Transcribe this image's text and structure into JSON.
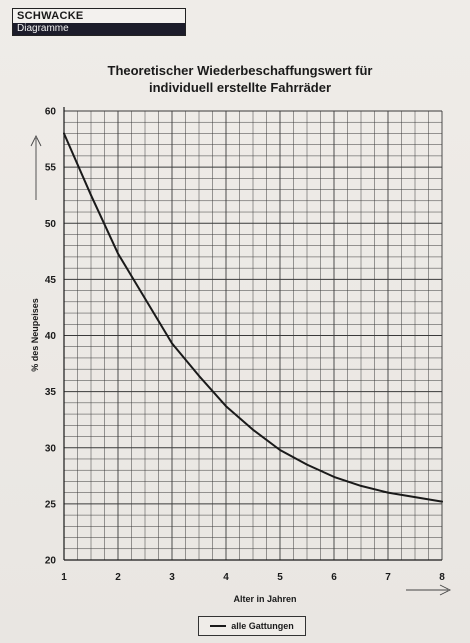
{
  "header": {
    "brand": "SCHWACKE",
    "section": "Diagramme"
  },
  "chart_data": {
    "type": "line",
    "title_line1": "Theoretischer Wiederbeschaffungswert für",
    "title_line2": "individuell erstellte Fahrräder",
    "xlabel": "Alter in Jahren",
    "ylabel": "% des Neupeises",
    "xlim": [
      1,
      8
    ],
    "ylim": [
      20,
      60
    ],
    "xticks": [
      1,
      2,
      3,
      4,
      5,
      6,
      7,
      8
    ],
    "yticks": [
      20,
      25,
      30,
      35,
      40,
      45,
      50,
      55,
      60
    ],
    "grid": true,
    "legend_position": "bottom-center",
    "series": [
      {
        "name": "alle Gattungen",
        "color": "#1a1a1a",
        "x": [
          1,
          1.5,
          2,
          2.5,
          3,
          3.5,
          4,
          4.5,
          5,
          5.5,
          6,
          6.5,
          7,
          7.5,
          8
        ],
        "y": [
          58.0,
          52.5,
          47.3,
          43.3,
          39.3,
          36.4,
          33.7,
          31.6,
          29.8,
          28.5,
          27.4,
          26.6,
          26.0,
          25.6,
          25.2
        ]
      }
    ]
  }
}
